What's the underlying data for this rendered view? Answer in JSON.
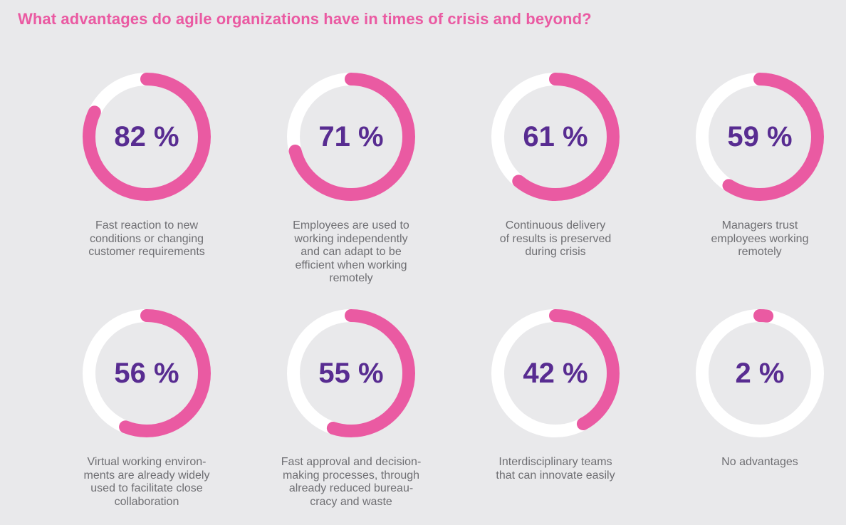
{
  "title": "What advantages do agile organizations have in times of crisis and beyond?",
  "colors": {
    "accent": "#ea5aa2",
    "track": "#ffffff",
    "value_text": "#582c91",
    "label_text": "#6f6f73",
    "background": "#e9e9eb"
  },
  "chart_data": {
    "type": "donut",
    "title": "What advantages do agile organizations have in times of crisis and beyond?",
    "unit": "%",
    "range": [
      0,
      100
    ],
    "items": [
      {
        "value": 82,
        "display": "82 %",
        "label_lines": [
          "Fast reaction to new",
          "conditions or changing",
          "customer requirements"
        ]
      },
      {
        "value": 71,
        "display": "71 %",
        "label_lines": [
          "Employees are used to",
          "working independently",
          "and can adapt to be",
          "efficient when working",
          "remotely"
        ]
      },
      {
        "value": 61,
        "display": "61 %",
        "label_lines": [
          "Continuous delivery",
          "of results is preserved",
          "during crisis"
        ]
      },
      {
        "value": 59,
        "display": "59 %",
        "label_lines": [
          "Managers trust",
          "employees working",
          "remotely"
        ]
      },
      {
        "value": 56,
        "display": "56 %",
        "label_lines": [
          "Virtual working environ-",
          "ments are already widely",
          "used to facilitate close",
          "collaboration"
        ]
      },
      {
        "value": 55,
        "display": "55 %",
        "label_lines": [
          "Fast approval and decision-",
          "making processes, through",
          "already reduced bureau-",
          "cracy and waste"
        ]
      },
      {
        "value": 42,
        "display": "42 %",
        "label_lines": [
          "Interdisciplinary teams",
          "that can innovate easily"
        ]
      },
      {
        "value": 2,
        "display": "2 %",
        "label_lines": [
          "No advantages"
        ]
      }
    ]
  }
}
